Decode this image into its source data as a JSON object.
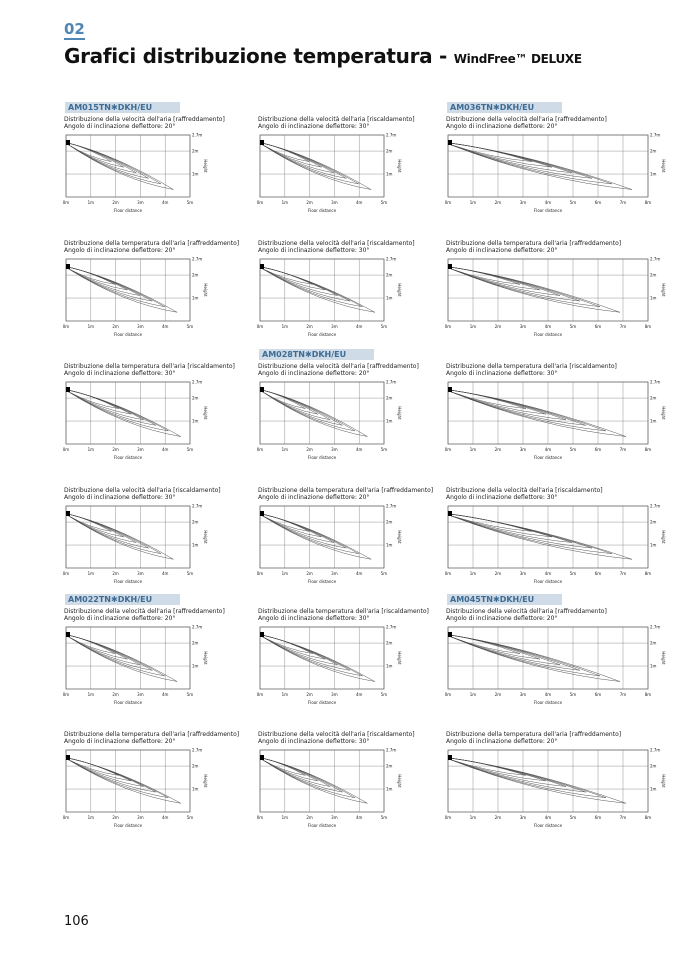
{
  "header": {
    "section": "02",
    "title": "Grafici distribuzione temperatura -",
    "subtitle": "WindFree™ DELUXE"
  },
  "axis": {
    "y_ticks": [
      "2.7m",
      "2m",
      "1m"
    ],
    "y_label": "Height",
    "x_label": "Floor distance"
  },
  "columns": [
    {
      "x_ticks": [
        "0m",
        "1m",
        "2m",
        "3m",
        "4m",
        "5m"
      ],
      "plots": [
        {
          "model": "AM015TN✱DKH/EU",
          "caption": [
            "Distribuzione della velocità dell'aria [raffreddamento]",
            "Angolo di inclinazione deflettore: 20°"
          ]
        },
        {
          "caption": [
            "Distribuzione della temperatura dell'aria [raffreddamento]",
            "Angolo di inclinazione deflettore: 20°"
          ]
        },
        {
          "caption": [
            "Distribuzione della temperatura dell'aria [riscaldamento]",
            "Angolo di inclinazione deflettore: 30°"
          ]
        },
        {
          "caption": [
            "Distribuzione della velocità dell'aria [riscaldamento]",
            "Angolo di inclinazione deflettore: 30°"
          ]
        },
        {
          "model": "AM022TN✱DKH/EU",
          "caption": [
            "Distribuzione della velocità dell'aria [raffreddamento]",
            "Angolo di inclinazione deflettore: 20°"
          ]
        },
        {
          "caption": [
            "Distribuzione della temperatura dell'aria [raffreddamento]",
            "Angolo di inclinazione deflettore: 20°"
          ]
        }
      ]
    },
    {
      "x_ticks": [
        "0m",
        "1m",
        "2m",
        "3m",
        "4m",
        "5m"
      ],
      "plots": [
        {
          "caption": [
            "Distribuzione della velocità dell'aria [riscaldamento]",
            "Angolo di inclinazione deflettore: 30°"
          ]
        },
        {
          "caption": [
            "Distribuzione della velocità dell'aria [riscaldamento]",
            "Angolo di inclinazione deflettore: 30°"
          ]
        },
        {
          "model": "AM028TN✱DKH/EU",
          "caption": [
            "Distribuzione della velocità dell'aria [raffreddamento]",
            "Angolo di inclinazione deflettore: 20°"
          ]
        },
        {
          "caption": [
            "Distribuzione della temperatura dell'aria [raffreddamento]",
            "Angolo di inclinazione deflettore: 20°"
          ]
        },
        {
          "caption": [
            "Distribuzione della temperatura dell'aria [riscaldamento]",
            "Angolo di inclinazione deflettore: 30°"
          ]
        },
        {
          "caption": [
            "Distribuzione della velocità dell'aria [riscaldamento]",
            "Angolo di inclinazione deflettore: 30°"
          ]
        }
      ]
    },
    {
      "x_ticks": [
        "0m",
        "1m",
        "2m",
        "3m",
        "4m",
        "5m",
        "6m",
        "7m",
        "8m"
      ],
      "plots": [
        {
          "model": "AM036TN✱DKH/EU",
          "caption": [
            "Distribuzione della velocità dell'aria [raffreddamento]",
            "Angolo di inclinazione deflettore: 20°"
          ]
        },
        {
          "caption": [
            "Distribuzione della temperatura dell'aria [raffreddamento]",
            "Angolo di inclinazione deflettore: 20°"
          ]
        },
        {
          "caption": [
            "Distribuzione della temperatura dell'aria [riscaldamento]",
            "Angolo di inclinazione deflettore: 30°"
          ]
        },
        {
          "caption": [
            "Distribuzione della velocità dell'aria [riscaldamento]",
            "Angolo di inclinazione deflettore: 30°"
          ]
        },
        {
          "model": "AM045TN✱DKH/EU",
          "caption": [
            "Distribuzione della velocità dell'aria [raffreddamento]",
            "Angolo di inclinazione deflettore: 20°"
          ]
        },
        {
          "caption": [
            "Distribuzione della temperatura dell'aria [raffreddamento]",
            "Angolo di inclinazione deflettore: 20°"
          ]
        }
      ]
    }
  ],
  "footer": {
    "page": "106"
  }
}
